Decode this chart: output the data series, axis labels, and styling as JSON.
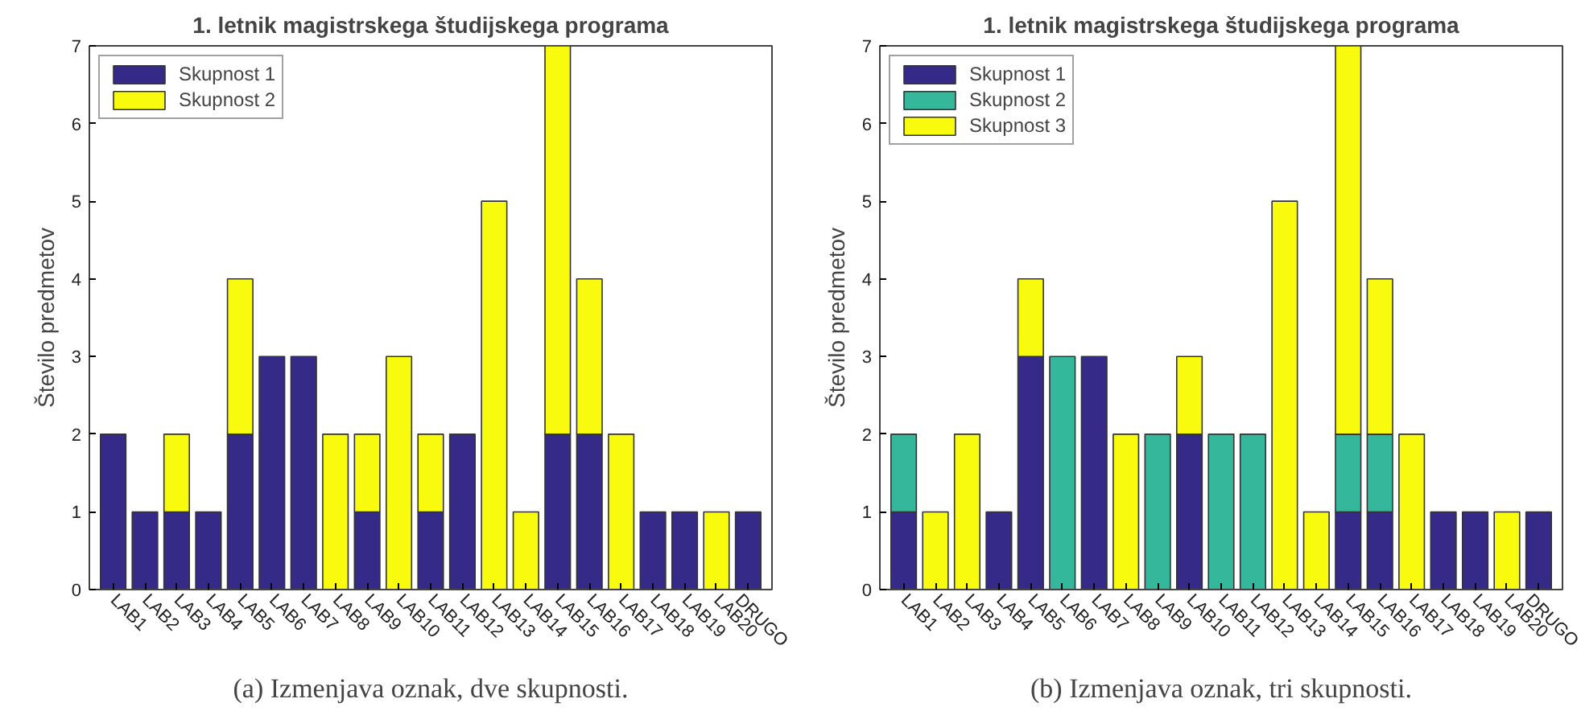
{
  "chart_data": [
    {
      "type": "bar",
      "title": "1. letnik magistrskega študijskega programa",
      "ylabel": "Število predmetov",
      "categories": [
        "LAB1",
        "LAB2",
        "LAB3",
        "LAB4",
        "LAB5",
        "LAB6",
        "LAB7",
        "LAB8",
        "LAB9",
        "LAB10",
        "LAB11",
        "LAB12",
        "LAB13",
        "LAB14",
        "LAB15",
        "LAB16",
        "LAB17",
        "LAB18",
        "LAB19",
        "LAB20",
        "DRUGO"
      ],
      "stacked": true,
      "ylim": [
        0,
        7
      ],
      "yticks": [
        0,
        1,
        2,
        3,
        4,
        5,
        6,
        7
      ],
      "legend": "top left",
      "grid": false,
      "series": [
        {
          "name": "Skupnost 1",
          "color": "#352a87",
          "values": [
            2,
            1,
            1,
            1,
            2,
            3,
            3,
            0,
            1,
            0,
            1,
            2,
            0,
            0,
            2,
            2,
            0,
            1,
            1,
            0,
            1
          ]
        },
        {
          "name": "Skupnost 2",
          "color": "#f9fb0e",
          "values": [
            0,
            0,
            1,
            0,
            2,
            0,
            0,
            2,
            1,
            3,
            1,
            0,
            5,
            1,
            5,
            2,
            2,
            0,
            0,
            1,
            0
          ]
        }
      ],
      "annotations": [
        "(a) Izmenjava oznak, dve skupnosti."
      ]
    },
    {
      "type": "bar",
      "title": "1. letnik magistrskega študijskega programa",
      "ylabel": "Število predmetov",
      "categories": [
        "LAB1",
        "LAB2",
        "LAB3",
        "LAB4",
        "LAB5",
        "LAB6",
        "LAB7",
        "LAB8",
        "LAB9",
        "LAB10",
        "LAB11",
        "LAB12",
        "LAB13",
        "LAB14",
        "LAB15",
        "LAB16",
        "LAB17",
        "LAB18",
        "LAB19",
        "LAB20",
        "DRUGO"
      ],
      "stacked": true,
      "ylim": [
        0,
        7
      ],
      "yticks": [
        0,
        1,
        2,
        3,
        4,
        5,
        6,
        7
      ],
      "legend": "top left",
      "grid": false,
      "series": [
        {
          "name": "Skupnost 1",
          "color": "#352a87",
          "values": [
            1,
            0,
            0,
            1,
            3,
            0,
            3,
            0,
            0,
            2,
            0,
            0,
            0,
            0,
            1,
            1,
            0,
            1,
            1,
            0,
            1
          ]
        },
        {
          "name": "Skupnost 2",
          "color": "#35b79b",
          "values": [
            1,
            0,
            0,
            0,
            0,
            3,
            0,
            0,
            2,
            0,
            2,
            2,
            0,
            0,
            1,
            1,
            0,
            0,
            0,
            0,
            0
          ]
        },
        {
          "name": "Skupnost 3",
          "color": "#f9fb0e",
          "values": [
            0,
            1,
            2,
            0,
            1,
            0,
            0,
            2,
            0,
            1,
            0,
            0,
            5,
            1,
            5,
            2,
            2,
            0,
            0,
            1,
            0
          ]
        }
      ],
      "annotations": [
        "(b) Izmenjava oznak, tri skupnosti."
      ]
    }
  ]
}
